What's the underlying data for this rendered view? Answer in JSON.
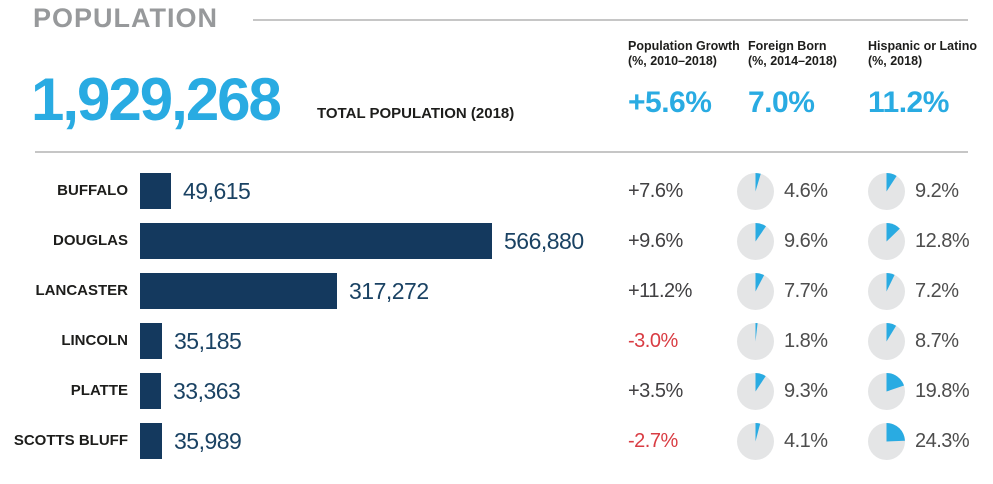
{
  "header": {
    "title": "POPULATION",
    "total_value": "1,929,268",
    "total_label": "TOTAL POPULATION (2018)",
    "stats": [
      {
        "label_line1": "Population Growth",
        "label_line2": "(%, 2010–2018)",
        "value": "+5.6%"
      },
      {
        "label_line1": "Foreign Born",
        "label_line2": "(%, 2014–2018)",
        "value": "7.0%"
      },
      {
        "label_line1": "Hispanic or Latino",
        "label_line2": "(%, 2018)",
        "value": "11.2%"
      }
    ]
  },
  "chart_data": {
    "type": "bar",
    "title": "POPULATION",
    "orientation": "horizontal",
    "categories": [
      "BUFFALO",
      "DOUGLAS",
      "LANCASTER",
      "LINCOLN",
      "PLATTE",
      "SCOTTS BLUFF"
    ],
    "series": [
      {
        "name": "Total Population (2018)",
        "values": [
          49615,
          566880,
          317272,
          35185,
          33363,
          35989
        ]
      },
      {
        "name": "Population Growth (%, 2010–2018)",
        "values": [
          7.6,
          9.6,
          11.2,
          -3.0,
          3.5,
          -2.7
        ]
      },
      {
        "name": "Foreign Born (%, 2014–2018)",
        "values": [
          4.6,
          9.6,
          7.7,
          1.8,
          9.3,
          4.1
        ]
      },
      {
        "name": "Hispanic or Latino (%, 2018)",
        "values": [
          9.2,
          12.8,
          7.2,
          8.7,
          19.8,
          24.3
        ]
      }
    ],
    "totals": {
      "population_2018": 1929268,
      "growth_pct": 5.6,
      "foreign_born_pct": 7.0,
      "hispanic_pct": 11.2
    },
    "xlim": [
      0,
      566880
    ],
    "grid": false,
    "legend": false,
    "notes": "Pie glyphs show Foreign Born and Hispanic/Latino shares; negative growth values shown in red"
  },
  "rows": [
    {
      "county": "BUFFALO",
      "population": "49,615",
      "pop_value": 49615,
      "growth": "+7.6%",
      "growth_negative": false,
      "foreign_born": "4.6%",
      "fb_pct": 4.6,
      "hispanic": "9.2%",
      "hisp_pct": 9.2
    },
    {
      "county": "DOUGLAS",
      "population": "566,880",
      "pop_value": 566880,
      "growth": "+9.6%",
      "growth_negative": false,
      "foreign_born": "9.6%",
      "fb_pct": 9.6,
      "hispanic": "12.8%",
      "hisp_pct": 12.8
    },
    {
      "county": "LANCASTER",
      "population": "317,272",
      "pop_value": 317272,
      "growth": "+11.2%",
      "growth_negative": false,
      "foreign_born": "7.7%",
      "fb_pct": 7.7,
      "hispanic": "7.2%",
      "hisp_pct": 7.2
    },
    {
      "county": "LINCOLN",
      "population": "35,185",
      "pop_value": 35185,
      "growth": "-3.0%",
      "growth_negative": true,
      "foreign_born": "1.8%",
      "fb_pct": 1.8,
      "hispanic": "8.7%",
      "hisp_pct": 8.7
    },
    {
      "county": "PLATTE",
      "population": "33,363",
      "pop_value": 33363,
      "growth": "+3.5%",
      "growth_negative": false,
      "foreign_born": "9.3%",
      "fb_pct": 9.3,
      "hispanic": "19.8%",
      "hisp_pct": 19.8
    },
    {
      "county": "SCOTTS BLUFF",
      "population": "35,989",
      "pop_value": 35989,
      "growth": "-2.7%",
      "growth_negative": true,
      "foreign_born": "4.1%",
      "fb_pct": 4.1,
      "hispanic": "24.3%",
      "hisp_pct": 24.3
    }
  ],
  "colors": {
    "accent_cyan": "#29ABE2",
    "bar_navy": "#14395E",
    "value_navy": "#1A4263",
    "ink_black": "#1D1D1B",
    "growth_gray": "#414042",
    "negative_red": "#D93C43",
    "pie_gray": "#E4E5E6",
    "pct_gray": "#4D4D4D",
    "title_gray": "#97999B",
    "rule_gray": "#C6C6C6"
  }
}
